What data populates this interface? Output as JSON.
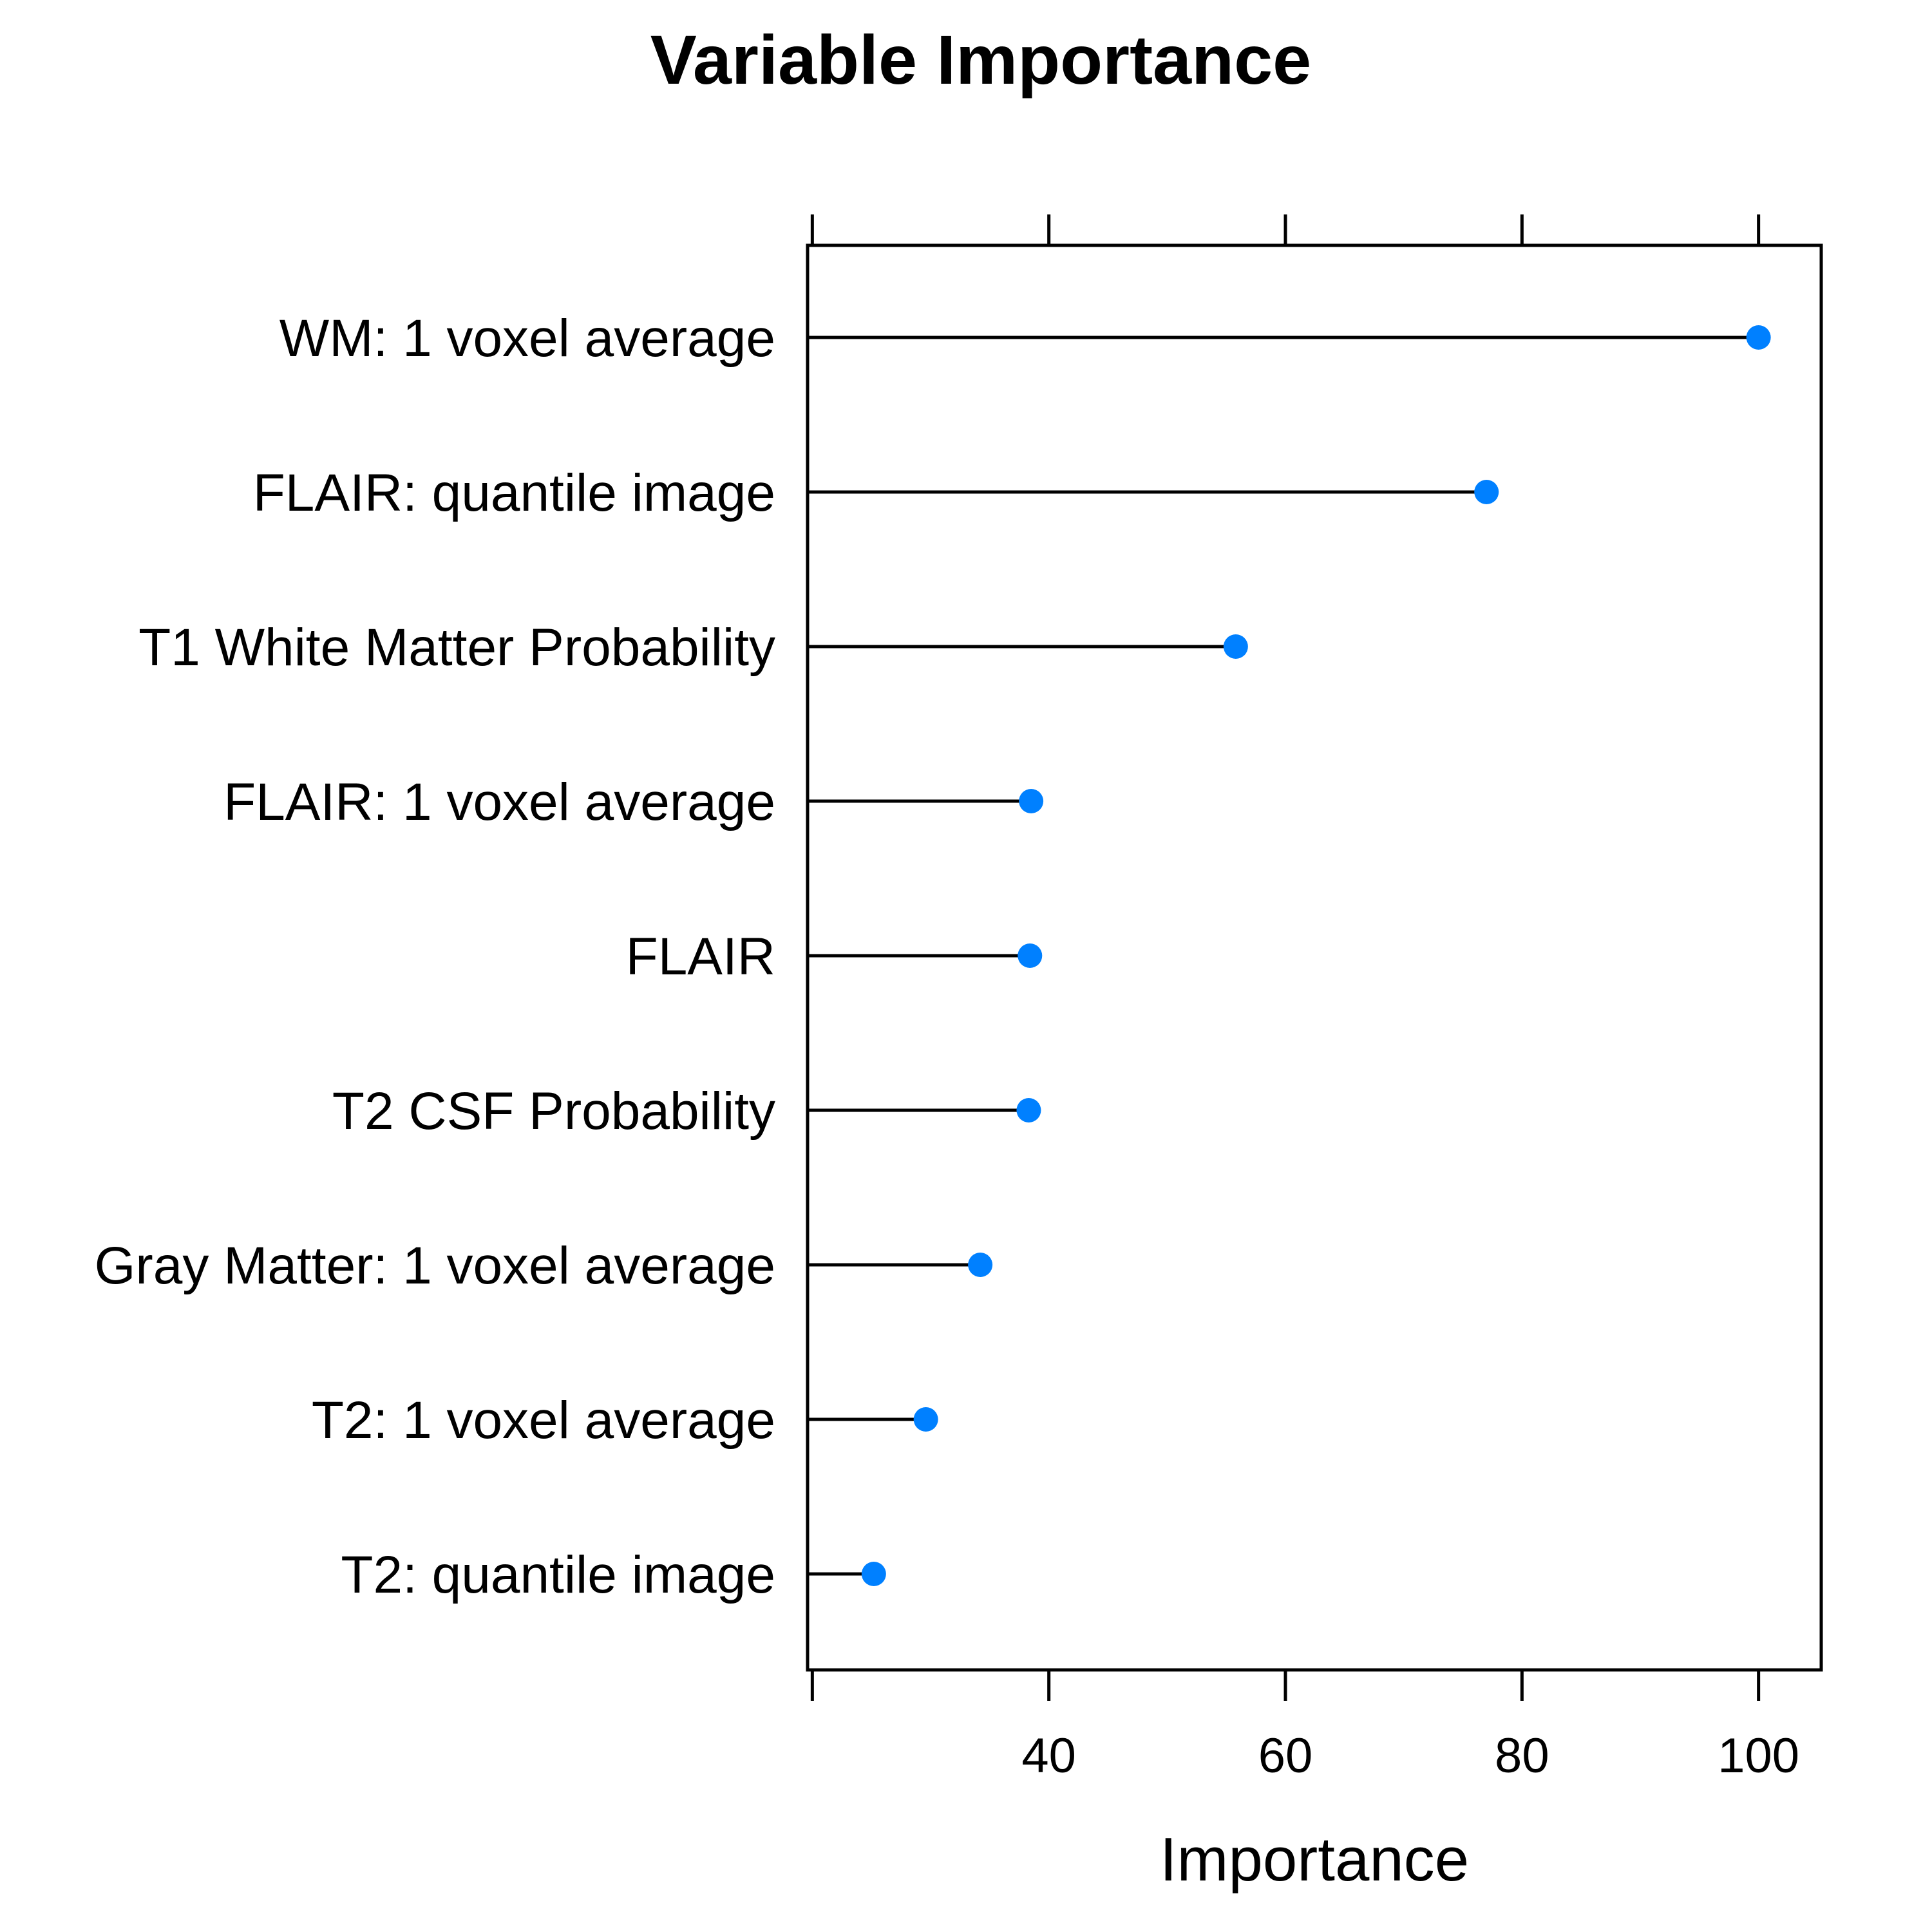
{
  "chart_data": {
    "type": "dot",
    "title": "Variable Importance",
    "xlabel": "Importance",
    "ylabel": "",
    "xlim": [
      19.6,
      105.3
    ],
    "x_ticks": [
      20,
      40,
      60,
      80,
      100
    ],
    "x_tick_labels": [
      "",
      "40",
      "60",
      "80",
      "100"
    ],
    "grid": false,
    "legend": "none",
    "point_color": "#0080ff",
    "line_color": "#000000",
    "categories": [
      "WM: 1 voxel average",
      "FLAIR: quantile image",
      "T1 White Matter Probability",
      "FLAIR: 1 voxel average",
      "FLAIR",
      "T2 CSF Probability",
      "Gray Matter: 1 voxel average",
      "T2: 1 voxel average",
      "T2: quantile image"
    ],
    "values": [
      100,
      77,
      55.8,
      38.5,
      38.4,
      38.3,
      34.2,
      29.6,
      25.2
    ]
  }
}
